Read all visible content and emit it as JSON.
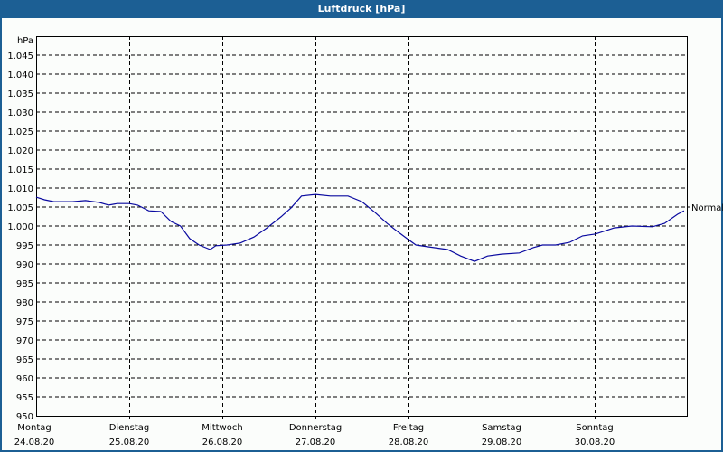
{
  "window": {
    "title": "Luftdruck [hPa]"
  },
  "colors": {
    "titlebar": "#1c5f94",
    "line": "#0a0aa0",
    "grid": "#000000",
    "background": "#fbfdfb"
  },
  "chart_data": {
    "type": "line",
    "title": "Luftdruck [hPa]",
    "xlabel": "",
    "ylabel": "hPa",
    "ylim": [
      950,
      1045
    ],
    "yticks": [
      950,
      955,
      960,
      965,
      970,
      975,
      980,
      985,
      990,
      995,
      1000,
      1005,
      1010,
      1015,
      1020,
      1025,
      1030,
      1035,
      1040,
      1045
    ],
    "ytick_labels": [
      "950",
      "955",
      "960",
      "965",
      "970",
      "975",
      "980",
      "985",
      "990",
      "995",
      "1.000",
      "1.005",
      "1.010",
      "1.015",
      "1.020",
      "1.025",
      "1.030",
      "1.035",
      "1.040",
      "1.045"
    ],
    "categories": [
      {
        "day": "Montag",
        "date": "24.08.20"
      },
      {
        "day": "Dienstag",
        "date": "25.08.20"
      },
      {
        "day": "Mittwoch",
        "date": "26.08.20"
      },
      {
        "day": "Donnerstag",
        "date": "27.08.20"
      },
      {
        "day": "Freitag",
        "date": "28.08.20"
      },
      {
        "day": "Samstag",
        "date": "29.08.20"
      },
      {
        "day": "Sonntag",
        "date": "30.08.20"
      }
    ],
    "grid": true,
    "annotation": {
      "label": "Normal",
      "value": 1005
    },
    "series": [
      {
        "name": "Luftdruck",
        "x_days": [
          0.0,
          0.09,
          0.19,
          0.39,
          0.53,
          0.68,
          0.78,
          0.87,
          1.0,
          1.09,
          1.21,
          1.34,
          1.45,
          1.55,
          1.65,
          1.75,
          1.87,
          1.93,
          2.05,
          2.19,
          2.34,
          2.48,
          2.63,
          2.74,
          2.85,
          3.0,
          3.16,
          3.35,
          3.5,
          3.64,
          3.77,
          3.88,
          4.0,
          4.08,
          4.22,
          4.42,
          4.56,
          4.71,
          4.85,
          5.0,
          5.19,
          5.34,
          5.44,
          5.58,
          5.73,
          5.87,
          6.01,
          6.21,
          6.4,
          6.62,
          6.75,
          6.89,
          6.96
        ],
        "values": [
          1007.6,
          1006.9,
          1006.4,
          1006.4,
          1006.7,
          1006.2,
          1005.5,
          1005.9,
          1005.9,
          1005.5,
          1004.0,
          1003.8,
          1001.2,
          1000.0,
          996.7,
          995.0,
          993.8,
          994.8,
          995.0,
          995.5,
          997.1,
          999.5,
          1002.4,
          1004.8,
          1007.9,
          1008.3,
          1007.9,
          1007.9,
          1006.4,
          1003.6,
          1000.7,
          998.6,
          996.4,
          995.0,
          994.5,
          993.8,
          992.1,
          990.7,
          992.1,
          992.6,
          992.9,
          994.3,
          995.0,
          995.0,
          995.7,
          997.4,
          997.9,
          999.5,
          1000.0,
          999.8,
          1000.7,
          1003.1,
          1004.0
        ]
      }
    ]
  }
}
